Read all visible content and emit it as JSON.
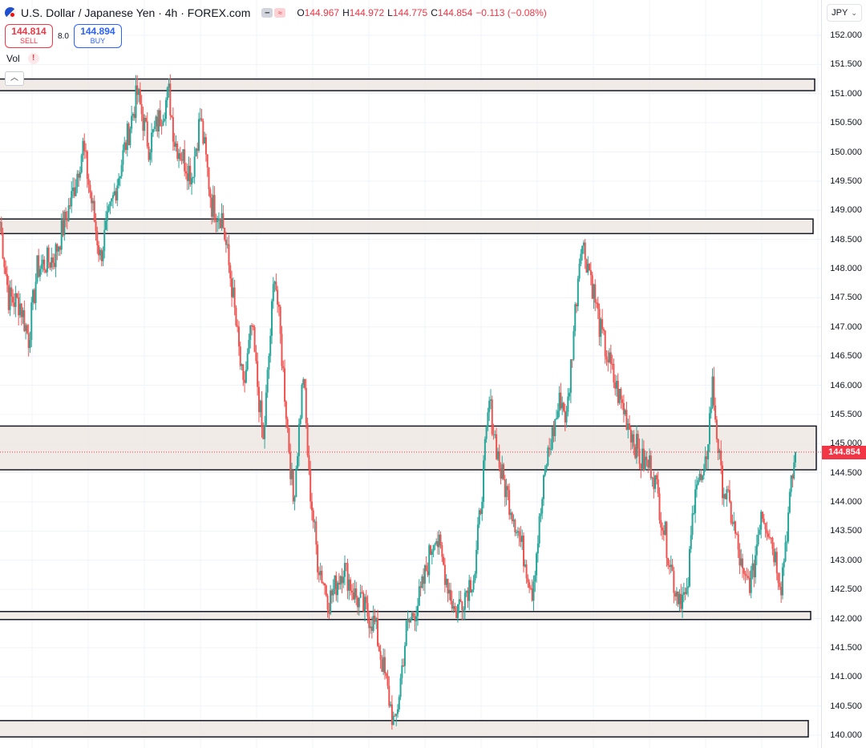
{
  "header": {
    "title": "U.S. Dollar / Japanese Yen · 4h · FOREX.com",
    "ohlc": [
      {
        "k": "O",
        "v": "144.967"
      },
      {
        "k": "H",
        "v": "144.972"
      },
      {
        "k": "L",
        "v": "144.775"
      },
      {
        "k": "C",
        "v": "144.854"
      }
    ],
    "change": "−0.113 (−0.08%)"
  },
  "trade": {
    "sell_price": "144.814",
    "sell_label": "SELL",
    "spread": "8.0",
    "buy_price": "144.894",
    "buy_label": "BUY"
  },
  "volume_label": "Vol",
  "currency": "JPY",
  "last_price": "144.854",
  "colors": {
    "up": "#26a69a",
    "down": "#ef5350",
    "zone_fill": "#ede8e3",
    "zone_border": "#131722",
    "grid": "#f0f3fa",
    "last_price": "#f23645"
  },
  "chart_data": {
    "type": "candlestick",
    "symbol": "USDJPY",
    "timeframe": "4h",
    "ylim": [
      139.9,
      152.35
    ],
    "y_ticks": [
      "152.000",
      "151.500",
      "151.000",
      "150.500",
      "150.000",
      "149.500",
      "149.000",
      "148.500",
      "148.000",
      "147.500",
      "147.000",
      "146.500",
      "146.000",
      "145.500",
      "145.000",
      "144.500",
      "144.000",
      "143.500",
      "143.000",
      "142.500",
      "142.000",
      "141.500",
      "141.000",
      "140.500",
      "140.000"
    ],
    "zones": [
      {
        "low": 151.05,
        "high": 151.25
      },
      {
        "low": 148.6,
        "high": 148.85
      },
      {
        "low": 144.55,
        "high": 145.3
      },
      {
        "low": 142.02,
        "high": 142.12
      },
      {
        "low": 139.97,
        "high": 140.25
      }
    ],
    "anchors": [
      [
        0,
        148.8
      ],
      [
        6,
        147.5
      ],
      [
        14,
        147.4
      ],
      [
        20,
        146.8
      ],
      [
        26,
        148.0
      ],
      [
        38,
        148.2
      ],
      [
        50,
        149.2
      ],
      [
        58,
        150.1
      ],
      [
        70,
        148.2
      ],
      [
        80,
        149.3
      ],
      [
        96,
        151.0
      ],
      [
        104,
        150.1
      ],
      [
        118,
        151.0
      ],
      [
        122,
        150.2
      ],
      [
        134,
        149.6
      ],
      [
        140,
        150.6
      ],
      [
        148,
        149.1
      ],
      [
        155,
        148.9
      ],
      [
        162,
        147.7
      ],
      [
        170,
        145.9
      ],
      [
        176,
        147.0
      ],
      [
        184,
        145.0
      ],
      [
        192,
        148.0
      ],
      [
        198,
        146.2
      ],
      [
        205,
        144.0
      ],
      [
        212,
        146.2
      ],
      [
        216,
        144.4
      ],
      [
        222,
        143.0
      ],
      [
        230,
        142.3
      ],
      [
        240,
        142.9
      ],
      [
        248,
        142.4
      ],
      [
        262,
        141.9
      ],
      [
        276,
        140.1
      ],
      [
        284,
        141.8
      ],
      [
        294,
        142.4
      ],
      [
        304,
        143.5
      ],
      [
        318,
        142.1
      ],
      [
        332,
        142.8
      ],
      [
        342,
        145.7
      ],
      [
        350,
        144.5
      ],
      [
        360,
        143.7
      ],
      [
        372,
        142.5
      ],
      [
        382,
        144.7
      ],
      [
        392,
        145.8
      ],
      [
        396,
        145.4
      ],
      [
        406,
        148.5
      ],
      [
        412,
        148.0
      ],
      [
        420,
        146.9
      ],
      [
        430,
        146.0
      ],
      [
        440,
        145.3
      ],
      [
        448,
        144.7
      ],
      [
        456,
        144.6
      ],
      [
        462,
        143.8
      ],
      [
        472,
        142.5
      ],
      [
        480,
        142.3
      ],
      [
        486,
        144.4
      ],
      [
        492,
        144.3
      ],
      [
        498,
        146.0
      ],
      [
        504,
        144.4
      ],
      [
        512,
        143.7
      ],
      [
        520,
        142.6
      ],
      [
        526,
        142.7
      ],
      [
        532,
        143.9
      ],
      [
        538,
        143.5
      ],
      [
        546,
        142.6
      ],
      [
        552,
        144.0
      ],
      [
        556,
        144.9
      ]
    ],
    "x_range": [
      0,
      556
    ],
    "last_close": 144.854
  }
}
